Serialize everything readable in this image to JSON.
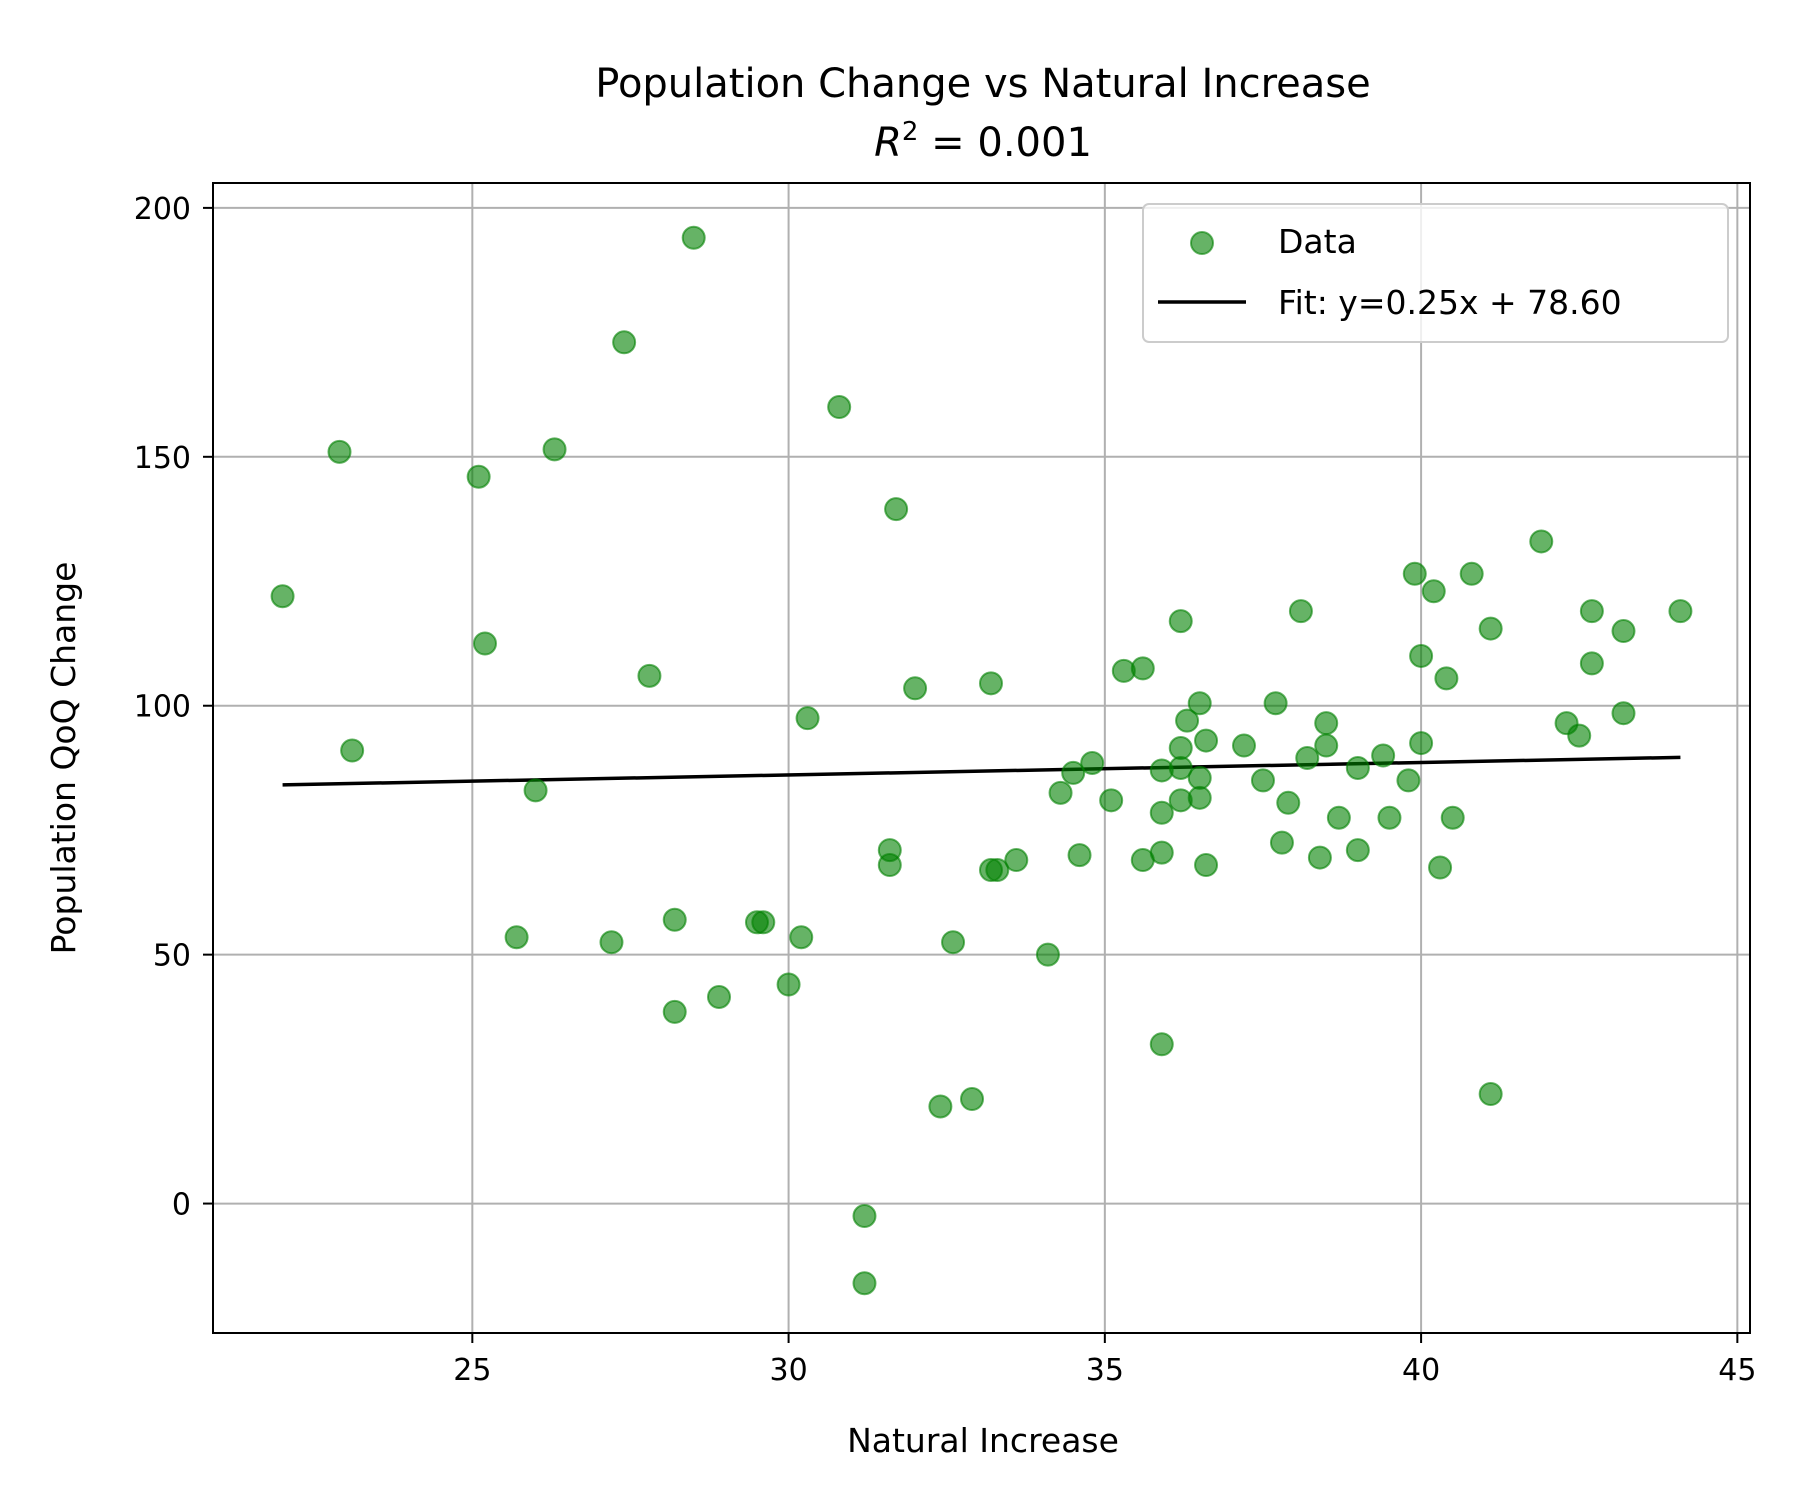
{
  "chart_data": {
    "type": "scatter",
    "title": "Population Change vs Natural Increase",
    "subtitle_prefix": "R",
    "subtitle_sup": "2",
    "subtitle_suffix": " = 0.001",
    "xlabel": "Natural Increase",
    "ylabel": "Population QoQ Change",
    "xlim": [
      20.9,
      45.2
    ],
    "ylim": [
      -26,
      205
    ],
    "xticks": [
      25,
      30,
      35,
      40,
      45
    ],
    "yticks": [
      0,
      50,
      100,
      150,
      200
    ],
    "grid": true,
    "legend_position": "top-right",
    "colors": {
      "points": "#008000",
      "fit": "#000000"
    },
    "series": [
      {
        "name": "Data",
        "kind": "scatter",
        "points": [
          [
            22.0,
            122
          ],
          [
            22.9,
            151
          ],
          [
            23.1,
            91
          ],
          [
            25.1,
            146
          ],
          [
            25.2,
            112.5
          ],
          [
            25.7,
            53.5
          ],
          [
            26.0,
            83
          ],
          [
            26.3,
            151.5
          ],
          [
            27.2,
            52.5
          ],
          [
            27.4,
            173
          ],
          [
            27.8,
            106
          ],
          [
            28.2,
            57
          ],
          [
            28.2,
            38.5
          ],
          [
            28.5,
            194
          ],
          [
            28.9,
            41.5
          ],
          [
            29.5,
            56.5
          ],
          [
            29.6,
            56.5
          ],
          [
            30.0,
            44
          ],
          [
            30.2,
            53.5
          ],
          [
            30.3,
            97.5
          ],
          [
            30.8,
            160
          ],
          [
            31.2,
            -2.5
          ],
          [
            31.2,
            -16
          ],
          [
            31.6,
            71
          ],
          [
            31.6,
            68
          ],
          [
            31.7,
            139.5
          ],
          [
            32.0,
            103.5
          ],
          [
            32.4,
            19.5
          ],
          [
            32.6,
            52.5
          ],
          [
            32.9,
            21
          ],
          [
            33.2,
            104.5
          ],
          [
            33.2,
            67
          ],
          [
            33.3,
            67
          ],
          [
            33.6,
            69
          ],
          [
            34.1,
            50
          ],
          [
            34.3,
            82.5
          ],
          [
            34.5,
            86.5
          ],
          [
            34.6,
            70
          ],
          [
            34.8,
            88.5
          ],
          [
            35.1,
            81
          ],
          [
            35.3,
            107
          ],
          [
            35.6,
            107.5
          ],
          [
            35.6,
            69
          ],
          [
            35.9,
            87
          ],
          [
            35.9,
            78.5
          ],
          [
            35.9,
            70.5
          ],
          [
            35.9,
            32
          ],
          [
            36.2,
            117
          ],
          [
            36.2,
            91.5
          ],
          [
            36.2,
            87.5
          ],
          [
            36.2,
            81
          ],
          [
            36.3,
            97
          ],
          [
            36.5,
            100.5
          ],
          [
            36.5,
            85.5
          ],
          [
            36.5,
            81.5
          ],
          [
            36.6,
            93
          ],
          [
            36.6,
            68
          ],
          [
            37.2,
            92
          ],
          [
            37.5,
            85
          ],
          [
            37.7,
            100.5
          ],
          [
            37.8,
            72.5
          ],
          [
            37.9,
            80.5
          ],
          [
            38.1,
            119
          ],
          [
            38.2,
            89.5
          ],
          [
            38.4,
            69.5
          ],
          [
            38.5,
            96.5
          ],
          [
            38.5,
            92
          ],
          [
            38.7,
            77.5
          ],
          [
            39.0,
            87.5
          ],
          [
            39.0,
            71
          ],
          [
            39.4,
            90
          ],
          [
            39.5,
            77.5
          ],
          [
            39.8,
            85
          ],
          [
            39.9,
            126.5
          ],
          [
            40.0,
            110
          ],
          [
            40.0,
            92.5
          ],
          [
            40.2,
            123
          ],
          [
            40.3,
            67.5
          ],
          [
            40.4,
            105.5
          ],
          [
            40.5,
            77.5
          ],
          [
            40.8,
            126.5
          ],
          [
            41.1,
            115.5
          ],
          [
            41.1,
            22
          ],
          [
            41.9,
            133
          ],
          [
            42.3,
            96.5
          ],
          [
            42.5,
            94
          ],
          [
            42.7,
            119
          ],
          [
            42.7,
            108.5
          ],
          [
            43.2,
            115
          ],
          [
            43.2,
            98.5
          ],
          [
            44.1,
            119
          ]
        ]
      },
      {
        "name": "Fit: y=0.25x + 78.60",
        "kind": "line",
        "slope": 0.25,
        "intercept": 78.6,
        "x_range": [
          22.0,
          44.1
        ]
      }
    ]
  }
}
